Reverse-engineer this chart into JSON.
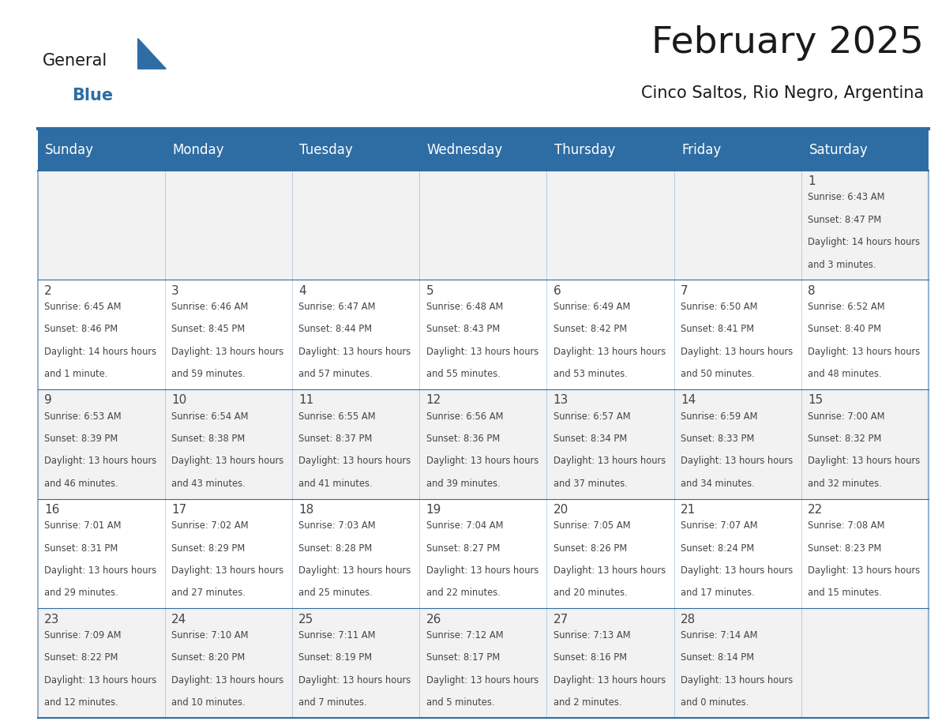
{
  "title": "February 2025",
  "subtitle": "Cinco Saltos, Rio Negro, Argentina",
  "header_bg": "#2E6DA4",
  "header_text": "#FFFFFF",
  "cell_bg_light": "#F2F2F2",
  "cell_bg_white": "#FFFFFF",
  "day_names": [
    "Sunday",
    "Monday",
    "Tuesday",
    "Wednesday",
    "Thursday",
    "Friday",
    "Saturday"
  ],
  "days": [
    {
      "day": 1,
      "col": 6,
      "row": 0,
      "sunrise": "6:43 AM",
      "sunset": "8:47 PM",
      "daylight": "14 hours and 3 minutes."
    },
    {
      "day": 2,
      "col": 0,
      "row": 1,
      "sunrise": "6:45 AM",
      "sunset": "8:46 PM",
      "daylight": "14 hours and 1 minute."
    },
    {
      "day": 3,
      "col": 1,
      "row": 1,
      "sunrise": "6:46 AM",
      "sunset": "8:45 PM",
      "daylight": "13 hours and 59 minutes."
    },
    {
      "day": 4,
      "col": 2,
      "row": 1,
      "sunrise": "6:47 AM",
      "sunset": "8:44 PM",
      "daylight": "13 hours and 57 minutes."
    },
    {
      "day": 5,
      "col": 3,
      "row": 1,
      "sunrise": "6:48 AM",
      "sunset": "8:43 PM",
      "daylight": "13 hours and 55 minutes."
    },
    {
      "day": 6,
      "col": 4,
      "row": 1,
      "sunrise": "6:49 AM",
      "sunset": "8:42 PM",
      "daylight": "13 hours and 53 minutes."
    },
    {
      "day": 7,
      "col": 5,
      "row": 1,
      "sunrise": "6:50 AM",
      "sunset": "8:41 PM",
      "daylight": "13 hours and 50 minutes."
    },
    {
      "day": 8,
      "col": 6,
      "row": 1,
      "sunrise": "6:52 AM",
      "sunset": "8:40 PM",
      "daylight": "13 hours and 48 minutes."
    },
    {
      "day": 9,
      "col": 0,
      "row": 2,
      "sunrise": "6:53 AM",
      "sunset": "8:39 PM",
      "daylight": "13 hours and 46 minutes."
    },
    {
      "day": 10,
      "col": 1,
      "row": 2,
      "sunrise": "6:54 AM",
      "sunset": "8:38 PM",
      "daylight": "13 hours and 43 minutes."
    },
    {
      "day": 11,
      "col": 2,
      "row": 2,
      "sunrise": "6:55 AM",
      "sunset": "8:37 PM",
      "daylight": "13 hours and 41 minutes."
    },
    {
      "day": 12,
      "col": 3,
      "row": 2,
      "sunrise": "6:56 AM",
      "sunset": "8:36 PM",
      "daylight": "13 hours and 39 minutes."
    },
    {
      "day": 13,
      "col": 4,
      "row": 2,
      "sunrise": "6:57 AM",
      "sunset": "8:34 PM",
      "daylight": "13 hours and 37 minutes."
    },
    {
      "day": 14,
      "col": 5,
      "row": 2,
      "sunrise": "6:59 AM",
      "sunset": "8:33 PM",
      "daylight": "13 hours and 34 minutes."
    },
    {
      "day": 15,
      "col": 6,
      "row": 2,
      "sunrise": "7:00 AM",
      "sunset": "8:32 PM",
      "daylight": "13 hours and 32 minutes."
    },
    {
      "day": 16,
      "col": 0,
      "row": 3,
      "sunrise": "7:01 AM",
      "sunset": "8:31 PM",
      "daylight": "13 hours and 29 minutes."
    },
    {
      "day": 17,
      "col": 1,
      "row": 3,
      "sunrise": "7:02 AM",
      "sunset": "8:29 PM",
      "daylight": "13 hours and 27 minutes."
    },
    {
      "day": 18,
      "col": 2,
      "row": 3,
      "sunrise": "7:03 AM",
      "sunset": "8:28 PM",
      "daylight": "13 hours and 25 minutes."
    },
    {
      "day": 19,
      "col": 3,
      "row": 3,
      "sunrise": "7:04 AM",
      "sunset": "8:27 PM",
      "daylight": "13 hours and 22 minutes."
    },
    {
      "day": 20,
      "col": 4,
      "row": 3,
      "sunrise": "7:05 AM",
      "sunset": "8:26 PM",
      "daylight": "13 hours and 20 minutes."
    },
    {
      "day": 21,
      "col": 5,
      "row": 3,
      "sunrise": "7:07 AM",
      "sunset": "8:24 PM",
      "daylight": "13 hours and 17 minutes."
    },
    {
      "day": 22,
      "col": 6,
      "row": 3,
      "sunrise": "7:08 AM",
      "sunset": "8:23 PM",
      "daylight": "13 hours and 15 minutes."
    },
    {
      "day": 23,
      "col": 0,
      "row": 4,
      "sunrise": "7:09 AM",
      "sunset": "8:22 PM",
      "daylight": "13 hours and 12 minutes."
    },
    {
      "day": 24,
      "col": 1,
      "row": 4,
      "sunrise": "7:10 AM",
      "sunset": "8:20 PM",
      "daylight": "13 hours and 10 minutes."
    },
    {
      "day": 25,
      "col": 2,
      "row": 4,
      "sunrise": "7:11 AM",
      "sunset": "8:19 PM",
      "daylight": "13 hours and 7 minutes."
    },
    {
      "day": 26,
      "col": 3,
      "row": 4,
      "sunrise": "7:12 AM",
      "sunset": "8:17 PM",
      "daylight": "13 hours and 5 minutes."
    },
    {
      "day": 27,
      "col": 4,
      "row": 4,
      "sunrise": "7:13 AM",
      "sunset": "8:16 PM",
      "daylight": "13 hours and 2 minutes."
    },
    {
      "day": 28,
      "col": 5,
      "row": 4,
      "sunrise": "7:14 AM",
      "sunset": "8:14 PM",
      "daylight": "13 hours and 0 minutes."
    }
  ],
  "num_rows": 5,
  "num_cols": 7,
  "logo_text_general": "General",
  "logo_text_blue": "Blue",
  "logo_color_general": "#1a1a1a",
  "logo_color_blue": "#2E6DA4",
  "logo_triangle_color": "#2E6DA4",
  "border_color": "#2E6DA4",
  "text_color": "#444444",
  "line_color": "#2E6DA4"
}
